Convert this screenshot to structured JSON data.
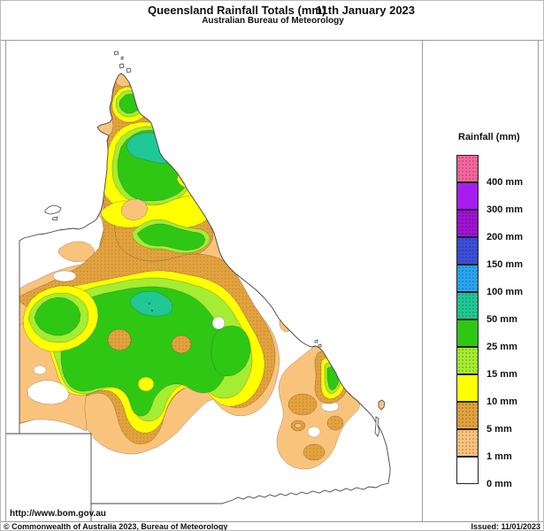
{
  "header": {
    "title": "Queensland Rainfall Totals (mm)",
    "date": "11th January 2023",
    "subtitle": "Australian Bureau of Meteorology"
  },
  "legend": {
    "title": "Rainfall (mm)",
    "entries": [
      {
        "label": "400 mm",
        "color": "#F4679E",
        "dotted": true
      },
      {
        "label": "300 mm",
        "color": "#A81CF0",
        "dotted": false
      },
      {
        "label": "200 mm",
        "color": "#9E14D2",
        "dotted": true
      },
      {
        "label": "150 mm",
        "color": "#3B4FD9",
        "dotted": true
      },
      {
        "label": "100 mm",
        "color": "#29A4F0",
        "dotted": true
      },
      {
        "label": "50 mm",
        "color": "#20C896",
        "dotted": true
      },
      {
        "label": "25 mm",
        "color": "#2EC714",
        "dotted": false
      },
      {
        "label": "15 mm",
        "color": "#A5ED32",
        "dotted": true
      },
      {
        "label": "10 mm",
        "color": "#FFFF00",
        "dotted": false
      },
      {
        "label": "5 mm",
        "color": "#E2A23E",
        "dotted": true
      },
      {
        "label": "1 mm",
        "color": "#FAC37C",
        "dotted": true
      },
      {
        "label": "0 mm",
        "color": "#FFFFFF",
        "dotted": false
      }
    ]
  },
  "colors": {
    "rain_0": "#FFFFFF",
    "rain_1": "#FAC37C",
    "rain_5": "#E2A23E",
    "rain_5_dot": "#C9862A",
    "rain_10": "#FFFF00",
    "rain_15": "#A5ED32",
    "rain_25": "#2EC714",
    "rain_50": "#20C896",
    "coast": "#444444",
    "frame": "#9A9A9A"
  },
  "footer": {
    "url": "http://www.bom.gov.au",
    "copyright": "© Commonwealth of Australia 2023, Bureau of Meteorology",
    "issued": "Issued: 11/01/2023"
  }
}
